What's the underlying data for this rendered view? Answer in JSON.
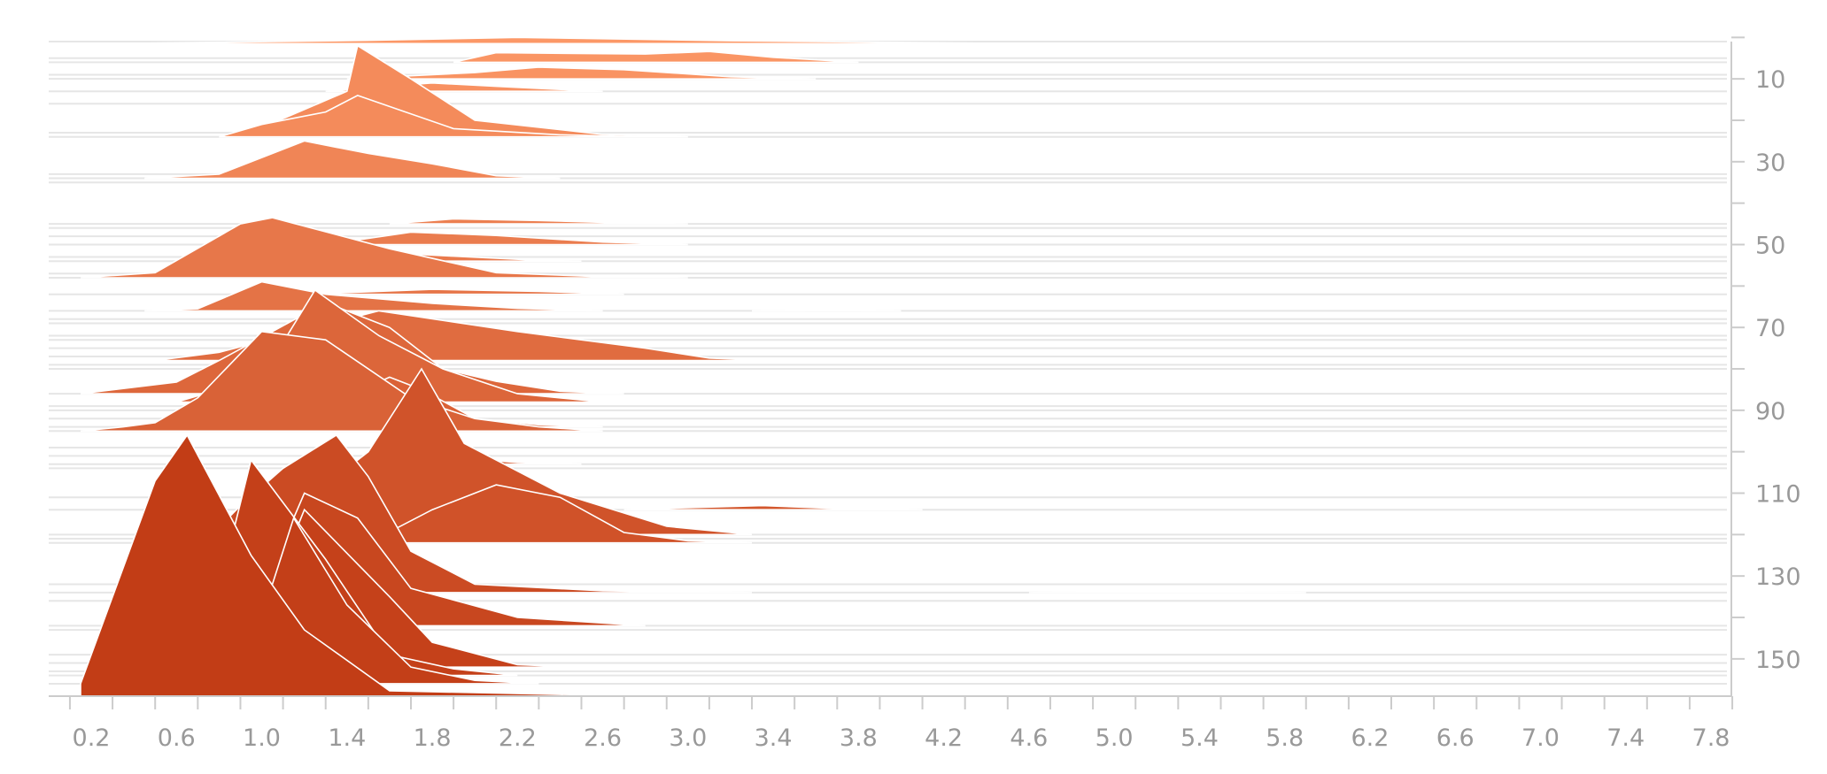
{
  "chart_data": {
    "type": "area",
    "title": "",
    "xlabel": "",
    "ylabel": "",
    "xlim": [
      0.1,
      8.0
    ],
    "ylim": [
      0,
      160
    ],
    "x_ticks": [
      0.2,
      0.6,
      1.0,
      1.4,
      1.8,
      2.2,
      2.6,
      3.0,
      3.4,
      3.8,
      4.2,
      4.6,
      5.0,
      5.4,
      5.8,
      6.2,
      6.6,
      7.0,
      7.4,
      7.8
    ],
    "y_ticks": [
      10,
      30,
      50,
      70,
      90,
      110,
      130,
      150
    ],
    "y_axis_position": "right",
    "y_axis_inverted": true,
    "grid": false,
    "colors": {
      "light": "#fc9867",
      "dark": "#c23d16",
      "outline": "#ffffff"
    },
    "baselines": [
      1,
      5,
      6,
      9,
      10,
      13,
      16,
      23,
      24,
      33,
      34,
      35,
      45,
      46,
      48,
      50,
      53,
      54,
      57,
      58,
      62,
      66,
      68,
      69,
      72,
      73,
      75,
      77,
      79,
      80,
      86,
      89,
      90,
      92,
      94,
      95,
      99,
      101,
      103,
      104,
      111,
      114,
      120,
      121,
      122,
      132,
      134,
      136,
      142,
      143,
      149,
      151,
      153,
      154,
      156
    ],
    "series": [
      {
        "baseline": 1.5,
        "points": [
          [
            0.3,
            0
          ],
          [
            1.5,
            0.8
          ],
          [
            2.2,
            1.5
          ],
          [
            3.2,
            0.7
          ],
          [
            4.6,
            0
          ]
        ]
      },
      {
        "baseline": 6,
        "points": [
          [
            1.9,
            0
          ],
          [
            2.1,
            2.3
          ],
          [
            2.8,
            2
          ],
          [
            3.1,
            2.6
          ],
          [
            3.4,
            1.2
          ],
          [
            3.8,
            0
          ]
        ]
      },
      {
        "baseline": 10,
        "points": [
          [
            1.4,
            0
          ],
          [
            2.0,
            1.5
          ],
          [
            2.3,
            2.8
          ],
          [
            2.7,
            2.2
          ],
          [
            3.2,
            0.5
          ],
          [
            3.6,
            0
          ]
        ]
      },
      {
        "baseline": 13,
        "points": [
          [
            1.3,
            0
          ],
          [
            1.5,
            0.9
          ],
          [
            1.8,
            2.0
          ],
          [
            2.1,
            1.2
          ],
          [
            2.5,
            0.2
          ],
          [
            2.6,
            0
          ]
        ]
      },
      {
        "baseline": 24,
        "points": [
          [
            0.9,
            0
          ],
          [
            1.4,
            11
          ],
          [
            1.45,
            22
          ],
          [
            1.7,
            14
          ],
          [
            2.0,
            4
          ],
          [
            2.6,
            0.6
          ],
          [
            3.0,
            0
          ]
        ]
      },
      {
        "baseline": 24,
        "points": [
          [
            0.8,
            0
          ],
          [
            1.0,
            3
          ],
          [
            1.3,
            6
          ],
          [
            1.45,
            10
          ],
          [
            1.9,
            2
          ],
          [
            2.4,
            0.5
          ],
          [
            2.8,
            0
          ]
        ]
      },
      {
        "baseline": 34,
        "points": [
          [
            0.45,
            0
          ],
          [
            0.8,
            1
          ],
          [
            1.2,
            9
          ],
          [
            1.5,
            6
          ],
          [
            1.8,
            3.5
          ],
          [
            2.1,
            0.6
          ],
          [
            2.4,
            0
          ]
        ]
      },
      {
        "baseline": 45,
        "points": [
          [
            1.6,
            0
          ],
          [
            1.9,
            1.2
          ],
          [
            2.3,
            0.8
          ],
          [
            2.7,
            0.2
          ],
          [
            3.0,
            0
          ]
        ]
      },
      {
        "baseline": 50,
        "points": [
          [
            1.3,
            0
          ],
          [
            1.7,
            3
          ],
          [
            2.1,
            2.2
          ],
          [
            2.6,
            0.6
          ],
          [
            3.0,
            0
          ]
        ]
      },
      {
        "baseline": 51,
        "points": [
          [
            3.8,
            0
          ],
          [
            4.1,
            0.3
          ],
          [
            4.6,
            0
          ]
        ]
      },
      {
        "baseline": 54,
        "points": [
          [
            1.3,
            0
          ],
          [
            1.6,
            2
          ],
          [
            1.9,
            1.2
          ],
          [
            2.3,
            0.2
          ],
          [
            2.5,
            0
          ]
        ]
      },
      {
        "baseline": 58,
        "points": [
          [
            0.15,
            0
          ],
          [
            0.5,
            1.2
          ],
          [
            0.9,
            13
          ],
          [
            1.05,
            14.5
          ],
          [
            1.6,
            7
          ],
          [
            2.1,
            1.2
          ],
          [
            2.6,
            0.2
          ],
          [
            3.0,
            0
          ]
        ]
      },
      {
        "baseline": 62,
        "points": [
          [
            1.2,
            0
          ],
          [
            1.8,
            1.2
          ],
          [
            2.3,
            0.7
          ],
          [
            2.7,
            0
          ]
        ]
      },
      {
        "baseline": 66,
        "points": [
          [
            0.45,
            0
          ],
          [
            0.7,
            0.5
          ],
          [
            1.0,
            7
          ],
          [
            1.3,
            4
          ],
          [
            1.8,
            1.8
          ],
          [
            2.2,
            0.6
          ],
          [
            2.6,
            0
          ]
        ]
      },
      {
        "baseline": 66,
        "points": [
          [
            3.3,
            0
          ],
          [
            3.7,
            0.2
          ],
          [
            4.0,
            0
          ]
        ]
      },
      {
        "baseline": 78,
        "points": [
          [
            0.5,
            0
          ],
          [
            0.8,
            2
          ],
          [
            1.1,
            6
          ],
          [
            1.55,
            12
          ],
          [
            2.2,
            7
          ],
          [
            2.8,
            3
          ],
          [
            3.1,
            0.6
          ],
          [
            3.4,
            0
          ]
        ]
      },
      {
        "baseline": 86,
        "points": [
          [
            0.15,
            0
          ],
          [
            0.6,
            2.8
          ],
          [
            0.8,
            8
          ],
          [
            1.3,
            22
          ],
          [
            1.6,
            16
          ],
          [
            1.85,
            6
          ],
          [
            2.1,
            3
          ],
          [
            2.4,
            0.6
          ],
          [
            2.7,
            0
          ]
        ]
      },
      {
        "baseline": 88,
        "points": [
          [
            0.6,
            0
          ],
          [
            1.0,
            6
          ],
          [
            1.25,
            27
          ],
          [
            1.55,
            16
          ],
          [
            1.85,
            8
          ],
          [
            2.2,
            2
          ],
          [
            2.6,
            0
          ]
        ]
      },
      {
        "baseline": 94,
        "points": [
          [
            1.0,
            0
          ],
          [
            1.3,
            5
          ],
          [
            1.6,
            12
          ],
          [
            1.75,
            9
          ],
          [
            2.0,
            2
          ],
          [
            2.3,
            0.5
          ],
          [
            2.6,
            0
          ]
        ]
      },
      {
        "baseline": 95,
        "points": [
          [
            0.15,
            0
          ],
          [
            0.35,
            1
          ],
          [
            0.5,
            2
          ],
          [
            0.7,
            8
          ],
          [
            1.0,
            24
          ],
          [
            1.3,
            22
          ],
          [
            1.7,
            8
          ],
          [
            2.0,
            3
          ],
          [
            2.3,
            1
          ],
          [
            2.6,
            0
          ]
        ]
      },
      {
        "baseline": 103,
        "points": [
          [
            1.7,
            0
          ],
          [
            2.0,
            1.2
          ],
          [
            2.2,
            0.4
          ],
          [
            2.5,
            0
          ]
        ]
      },
      {
        "baseline": 120,
        "points": [
          [
            0.8,
            0
          ],
          [
            1.1,
            4
          ],
          [
            1.5,
            20
          ],
          [
            1.75,
            40
          ],
          [
            1.95,
            22
          ],
          [
            2.4,
            10
          ],
          [
            2.9,
            2
          ],
          [
            3.3,
            0
          ]
        ]
      },
      {
        "baseline": 122,
        "points": [
          [
            1.5,
            0
          ],
          [
            1.8,
            8
          ],
          [
            2.1,
            14
          ],
          [
            2.4,
            11
          ],
          [
            2.7,
            2.5
          ],
          [
            3.0,
            0.5
          ],
          [
            3.3,
            0
          ]
        ]
      },
      {
        "baseline": 114,
        "points": [
          [
            2.7,
            0
          ],
          [
            3.0,
            0.5
          ],
          [
            3.35,
            1.0
          ],
          [
            3.65,
            0.4
          ],
          [
            4.1,
            0
          ]
        ]
      },
      {
        "baseline": 134,
        "points": [
          [
            0.5,
            0
          ],
          [
            0.9,
            21
          ],
          [
            1.1,
            30
          ],
          [
            1.35,
            38
          ],
          [
            1.5,
            28
          ],
          [
            1.7,
            10
          ],
          [
            2.0,
            2
          ],
          [
            2.6,
            0.4
          ],
          [
            3.3,
            0
          ]
        ]
      },
      {
        "baseline": 134,
        "points": [
          [
            4.6,
            0
          ],
          [
            5.2,
            0.3
          ],
          [
            5.9,
            0
          ]
        ]
      },
      {
        "baseline": 142,
        "points": [
          [
            0.7,
            0
          ],
          [
            1.1,
            20
          ],
          [
            1.2,
            32
          ],
          [
            1.45,
            26
          ],
          [
            1.7,
            9
          ],
          [
            2.2,
            2
          ],
          [
            2.8,
            0
          ]
        ]
      },
      {
        "baseline": 152,
        "points": [
          [
            0.9,
            0
          ],
          [
            1.2,
            38
          ],
          [
            1.6,
            17
          ],
          [
            1.8,
            6
          ],
          [
            2.2,
            0.6
          ],
          [
            2.5,
            0
          ]
        ]
      },
      {
        "baseline": 154,
        "points": [
          [
            0.7,
            0
          ],
          [
            0.95,
            52
          ],
          [
            1.3,
            28
          ],
          [
            1.6,
            5
          ],
          [
            1.9,
            1.6
          ],
          [
            2.2,
            0
          ]
        ]
      },
      {
        "baseline": 156,
        "points": [
          [
            0.9,
            0
          ],
          [
            1.15,
            40
          ],
          [
            1.4,
            19
          ],
          [
            1.7,
            4
          ],
          [
            2.0,
            0.8
          ],
          [
            2.3,
            0
          ]
        ]
      },
      {
        "baseline": 159,
        "points": [
          [
            0.15,
            0
          ],
          [
            0.15,
            3
          ],
          [
            0.5,
            52
          ],
          [
            0.65,
            63
          ],
          [
            0.95,
            34
          ],
          [
            1.2,
            16
          ],
          [
            1.6,
            1.3
          ],
          [
            2.4,
            0.4
          ],
          [
            3.0,
            0
          ]
        ]
      }
    ]
  }
}
